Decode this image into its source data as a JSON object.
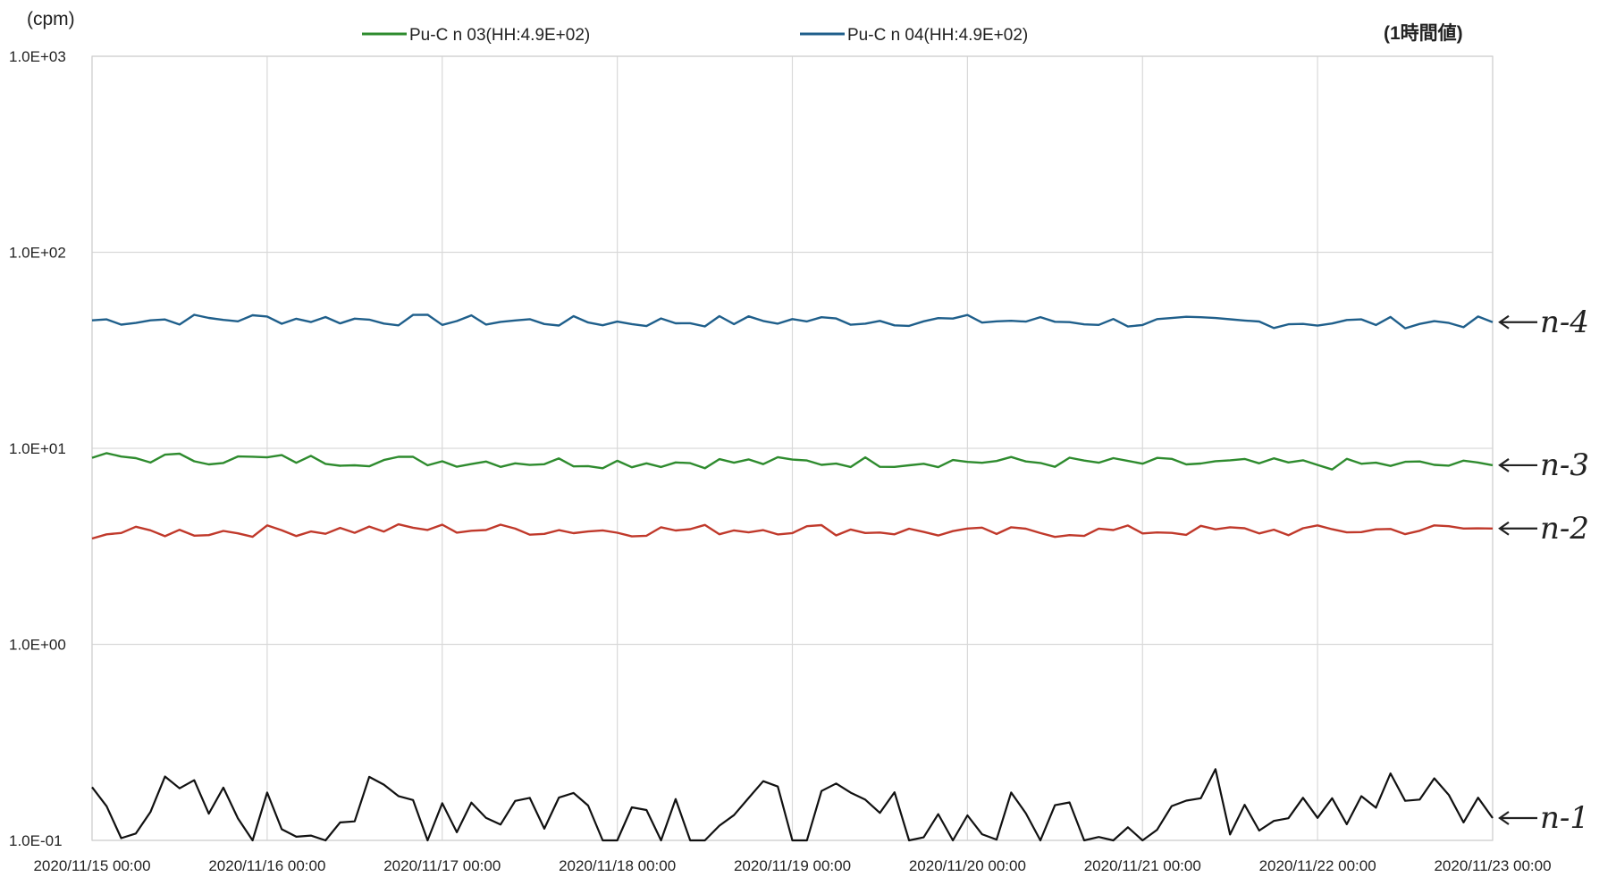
{
  "chart_data": {
    "type": "line",
    "unit_label": "(cpm)",
    "note": "(1時間値)",
    "yscale": "log",
    "ylim": [
      0.1,
      1000
    ],
    "y_ticks": [
      "1.0E-01",
      "1.0E+00",
      "1.0E+01",
      "1.0E+02",
      "1.0E+03"
    ],
    "y_tick_values": [
      0.1,
      1,
      10,
      100,
      1000
    ],
    "xlim": [
      "2020/11/15 00:00",
      "2020/11/23 00:00"
    ],
    "x_ticks": [
      "2020/11/15 00:00",
      "2020/11/16 00:00",
      "2020/11/17 00:00",
      "2020/11/18 00:00",
      "2020/11/19 00:00",
      "2020/11/20 00:00",
      "2020/11/21 00:00",
      "2020/11/22 00:00",
      "2020/11/23 00:00"
    ],
    "x_tick_values": [
      0,
      1,
      2,
      3,
      4,
      5,
      6,
      7,
      8
    ],
    "x_daily": [
      0,
      1,
      2,
      3,
      4,
      5,
      6,
      7,
      8
    ],
    "grid": true,
    "legend": [
      {
        "label": "Pu-C n 03(HH:4.9E+02)",
        "color": "#2e8b2e"
      },
      {
        "label": "Pu-C n 04(HH:4.9E+02)",
        "color": "#1f5f8b"
      }
    ],
    "series": [
      {
        "label": "n-4",
        "color": "#1f5f8b",
        "values": [
          45,
          46,
          45,
          44,
          45,
          45,
          44,
          44,
          44
        ]
      },
      {
        "label": "n-3",
        "color": "#2e8b2e",
        "values": [
          9.0,
          8.8,
          8.6,
          8.5,
          8.5,
          8.6,
          8.4,
          8.3,
          8.2
        ]
      },
      {
        "label": "n-2",
        "color": "#c0392b",
        "values": [
          3.7,
          3.8,
          3.9,
          3.8,
          3.9,
          3.7,
          3.8,
          3.8,
          3.9
        ]
      },
      {
        "label": "n-1",
        "color": "#111111",
        "values": [
          0.17,
          0.13,
          0.16,
          0.15,
          0.14,
          0.12,
          0.14,
          0.2,
          0.13
        ]
      }
    ]
  }
}
